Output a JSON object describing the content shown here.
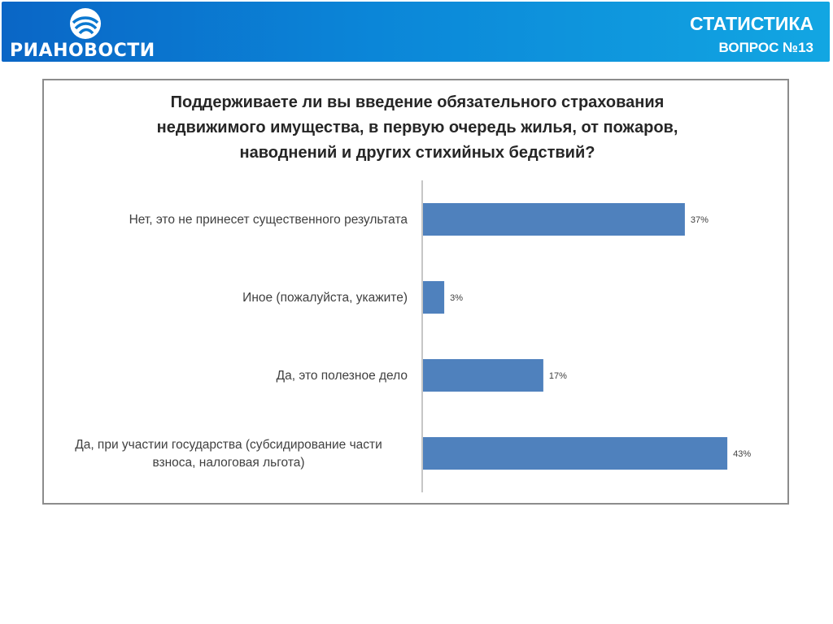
{
  "header": {
    "logo_text": "РИАНОВОСТИ",
    "logo_icon": "ria-swirl-logo",
    "title": "СТАТИСТИКА",
    "subtitle": "ВОПРОС №13"
  },
  "colors": {
    "header_start": "#0a66c6",
    "header_end": "#12a6e2",
    "bar": "#4f81bd",
    "frame": "#8c8c8c",
    "axis": "#8c8c8c"
  },
  "chart_data": {
    "type": "bar",
    "orientation": "horizontal",
    "title_lines": [
      "Поддерживаете ли вы введение обязательного страхования",
      "недвижимого имущества, в первую очередь жилья, от пожаров,",
      "наводнений и других стихийных бедствий?"
    ],
    "categories": [
      [
        "Нет, это не принесет существенного результата"
      ],
      [
        "Иное (пожалуйста, укажите)"
      ],
      [
        "Да, это полезное дело"
      ],
      [
        "Да, при участии государства (субсидирование части",
        "взноса, налоговая льгота)"
      ]
    ],
    "values": [
      37,
      3,
      17,
      43
    ],
    "value_labels": [
      "37%",
      "3%",
      "17%",
      "43%"
    ],
    "unit": "%",
    "xlim": [
      0,
      50
    ],
    "grid": false,
    "legend": "none"
  }
}
